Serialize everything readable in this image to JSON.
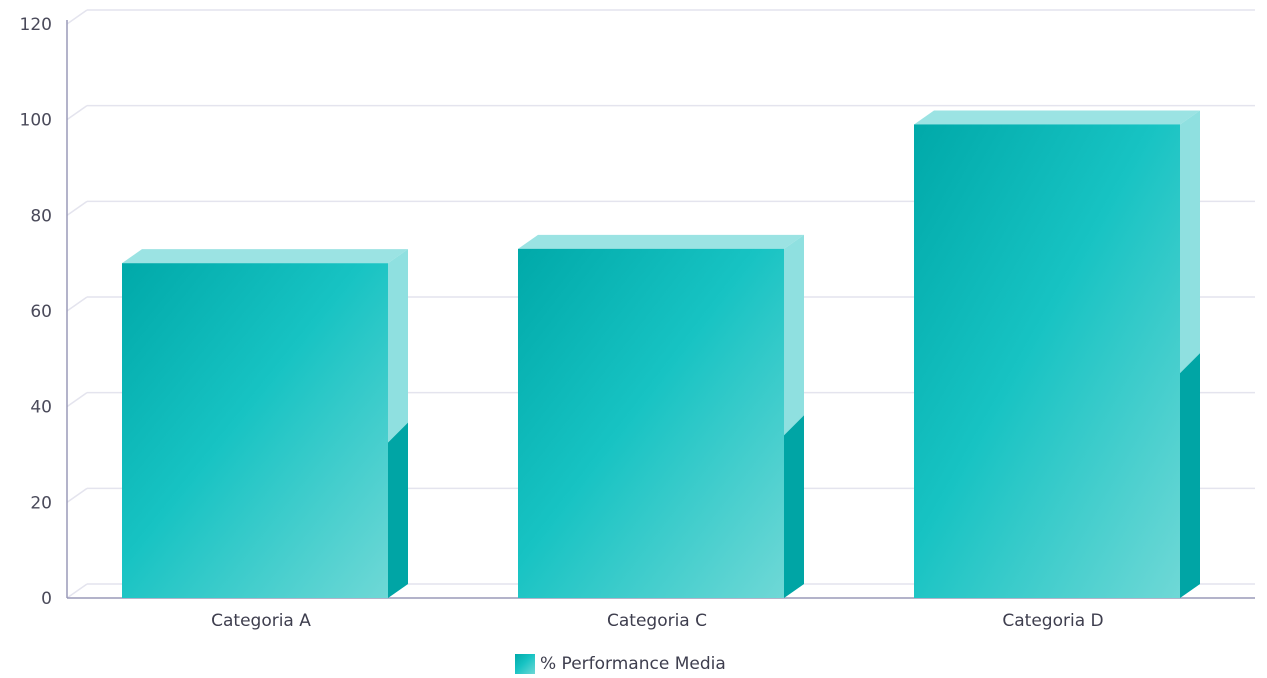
{
  "chart_data": {
    "type": "bar",
    "style": "3d",
    "categories": [
      "Categoria A",
      "Categoria C",
      "Categoria D"
    ],
    "series": [
      {
        "name": "% Performance Media",
        "values": [
          70,
          73,
          99
        ]
      }
    ],
    "ylim": [
      0,
      120
    ],
    "yticks": [
      0,
      20,
      40,
      60,
      80,
      100,
      120
    ],
    "grid": true,
    "legend_position": "bottom-center",
    "colors": {
      "bar_dark": "#00a9a9",
      "bar_mid": "#17c3c3",
      "bar_light": "#6fd8d6",
      "top_face": "#9be3e3",
      "side_face": "#8fe0e0",
      "side_shadow": "#00a5a5",
      "grid": "#e4e4ee",
      "axis": "#9a9ab8"
    }
  }
}
